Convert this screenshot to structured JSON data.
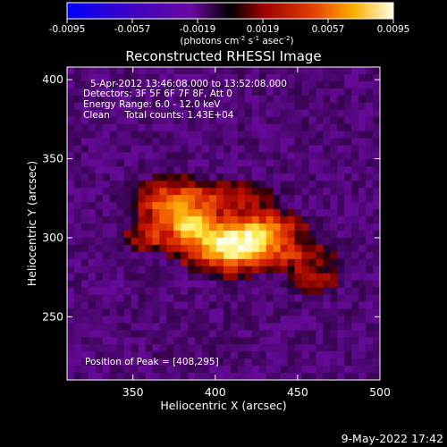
{
  "chart_data": {
    "type": "heatmap",
    "title": "Reconstructed RHESSI Image",
    "xlabel": "Heliocentric X (arcsec)",
    "ylabel": "Heliocentric Y (arcsec)",
    "xlim": [
      310,
      500
    ],
    "ylim": [
      210,
      408
    ],
    "x_ticks": [
      350,
      400,
      450,
      500
    ],
    "y_ticks": [
      250,
      300,
      350,
      400
    ],
    "colorbar": {
      "min": -0.0095,
      "max": 0.0095,
      "ticks": [
        "-0.0095",
        "-0.0057",
        "-0.0019",
        "0.0019",
        "0.0057",
        "0.0095"
      ],
      "unit_label": "(photons cm",
      "unit_exp1": "-2",
      "unit_mid": " s",
      "unit_exp2": "-1",
      "unit_mid2": " asec",
      "unit_exp3": "-2",
      "unit_end": ")"
    },
    "annotations": [
      "5-Apr-2012 13:46:08.000 to 13:52:08.000",
      "Detectors: 3F 5F 6F 7F 8F, Att 0",
      "Energy Range: 6.0 - 12.0 keV",
      "Clean     Total counts: 1.43E+04"
    ],
    "peak_label": "Position of Peak = [408,295]",
    "peak": [
      408,
      295
    ],
    "grid": false
  },
  "footer": {
    "timestamp": "9-May-2022 17:42"
  }
}
